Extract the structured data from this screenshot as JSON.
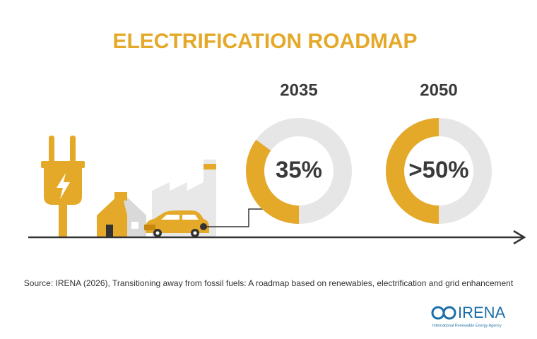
{
  "title": "ELECTRIFICATION ROADMAP",
  "chart_data": [
    {
      "type": "donut",
      "title": "2035",
      "values": [
        35
      ],
      "value_labels": [
        "35%"
      ],
      "color": "#e5a929",
      "track_color": "#e6e6e6"
    },
    {
      "type": "donut",
      "title": "2050",
      "values": [
        50
      ],
      "value_labels": [
        ">50%"
      ],
      "color": "#e5a929",
      "track_color": "#e6e6e6"
    }
  ],
  "source": "Source: IRENA (2026), Transitioning away from fossil fuels: A roadmap based on renewables, electrification and grid enhancement",
  "logo": {
    "name": "IRENA",
    "subtitle": "International Renewable Energy Agency"
  }
}
